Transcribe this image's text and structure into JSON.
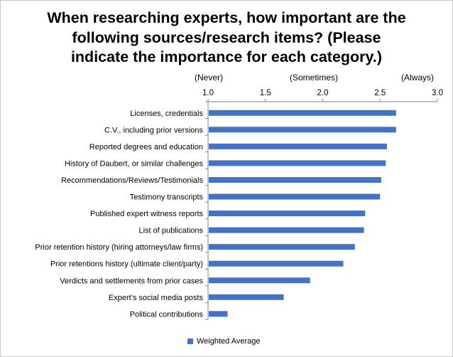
{
  "chart_data": {
    "type": "bar",
    "orientation": "horizontal",
    "title_lines": [
      "When researching experts, how important are the",
      "following sources/research items?  (Please",
      "indicate the importance for each category.)"
    ],
    "scale_labels": [
      {
        "text": "(Never)",
        "at": 1.0
      },
      {
        "text": "(Sometimes)",
        "at": 2.0
      },
      {
        "text": "(Always)",
        "at": 3.0
      }
    ],
    "xlim": [
      1.0,
      3.0
    ],
    "ticks": [
      "1.0",
      "1.5",
      "2.0",
      "2.5",
      "3.0"
    ],
    "categories": [
      "Licenses, credentials",
      "C.V., including prior versions",
      "Reported degrees and education",
      "History of Daubert, or similar challenges",
      "Recommendations/Reviews/Testimonials",
      "Testimony transcripts",
      "Published expert witness reports",
      "List of publications",
      "Prior retention history (hiring attorneys/law firms)",
      "Prior retentions history (ultimate client/party)",
      "Verdicts and settlements from prior cases",
      "Expert’s social media posts",
      "Political contributions"
    ],
    "series": [
      {
        "name": "Weighted Average",
        "color": "#4472c4",
        "values": [
          2.64,
          2.64,
          2.56,
          2.55,
          2.51,
          2.5,
          2.37,
          2.36,
          2.28,
          2.18,
          1.89,
          1.66,
          1.17
        ]
      }
    ],
    "grid": false,
    "legend_position": "bottom"
  }
}
